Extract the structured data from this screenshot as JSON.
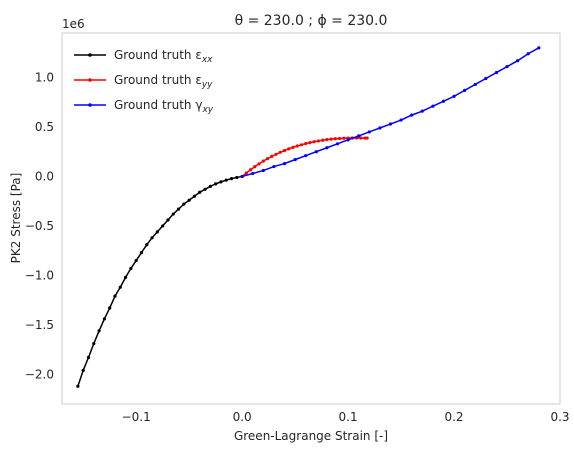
{
  "chart_data": {
    "type": "line",
    "title": "θ = 230.0 ; ϕ = 230.0",
    "xlabel": "Green-Lagrange Strain [-]",
    "ylabel": "PK2 Stress [Pa]",
    "y_offset_label": "1e6",
    "xlim": [
      -0.17,
      0.3
    ],
    "ylim": [
      -2.3,
      1.45
    ],
    "x_ticks": [
      -0.1,
      0.0,
      0.1,
      0.2,
      0.3
    ],
    "x_tick_labels": [
      "−0.1",
      "0.0",
      "0.1",
      "0.2",
      "0.3"
    ],
    "y_ticks": [
      -2.0,
      -1.5,
      -1.0,
      -0.5,
      0.0,
      0.5,
      1.0
    ],
    "y_tick_labels": [
      "−2.0",
      "−1.5",
      "−1.0",
      "−0.5",
      "0.0",
      "0.5",
      "1.0"
    ],
    "grid": false,
    "legend_position": "top-left",
    "series": [
      {
        "name": "Ground truth εxx",
        "legend_base": "Ground truth ε",
        "legend_sub": "xx",
        "color": "#000000",
        "x": [
          -0.155,
          -0.15,
          -0.145,
          -0.14,
          -0.135,
          -0.13,
          -0.125,
          -0.12,
          -0.115,
          -0.11,
          -0.105,
          -0.1,
          -0.095,
          -0.09,
          -0.085,
          -0.08,
          -0.075,
          -0.07,
          -0.065,
          -0.06,
          -0.055,
          -0.05,
          -0.045,
          -0.04,
          -0.035,
          -0.03,
          -0.025,
          -0.02,
          -0.015,
          -0.01,
          -0.005,
          0.0
        ],
        "y": [
          -2.12,
          -1.96,
          -1.83,
          -1.69,
          -1.56,
          -1.44,
          -1.33,
          -1.21,
          -1.12,
          -1.02,
          -0.93,
          -0.85,
          -0.77,
          -0.69,
          -0.62,
          -0.56,
          -0.5,
          -0.44,
          -0.38,
          -0.33,
          -0.28,
          -0.24,
          -0.2,
          -0.16,
          -0.13,
          -0.1,
          -0.075,
          -0.055,
          -0.037,
          -0.022,
          -0.01,
          0.0
        ]
      },
      {
        "name": "Ground truth εyy",
        "legend_base": "Ground truth ε",
        "legend_sub": "yy",
        "color": "#ff0000",
        "x": [
          0.0,
          0.004,
          0.008,
          0.012,
          0.016,
          0.02,
          0.024,
          0.028,
          0.032,
          0.036,
          0.04,
          0.044,
          0.048,
          0.052,
          0.056,
          0.06,
          0.064,
          0.068,
          0.072,
          0.076,
          0.08,
          0.084,
          0.088,
          0.092,
          0.096,
          0.1,
          0.104,
          0.108,
          0.112,
          0.116,
          0.118
        ],
        "y": [
          0.0,
          0.035,
          0.068,
          0.099,
          0.128,
          0.155,
          0.18,
          0.203,
          0.224,
          0.244,
          0.262,
          0.279,
          0.294,
          0.308,
          0.32,
          0.332,
          0.342,
          0.351,
          0.359,
          0.366,
          0.372,
          0.377,
          0.381,
          0.384,
          0.386,
          0.388,
          0.389,
          0.389,
          0.389,
          0.388,
          0.388
        ]
      },
      {
        "name": "Ground truth γxy",
        "legend_base": "Ground truth γ",
        "legend_sub": "xy",
        "color": "#0000ff",
        "x": [
          0.0,
          0.01,
          0.02,
          0.03,
          0.04,
          0.05,
          0.06,
          0.07,
          0.08,
          0.09,
          0.1,
          0.11,
          0.12,
          0.13,
          0.14,
          0.15,
          0.16,
          0.17,
          0.18,
          0.19,
          0.2,
          0.21,
          0.22,
          0.23,
          0.24,
          0.25,
          0.26,
          0.27,
          0.28
        ],
        "y": [
          0.0,
          0.03,
          0.06,
          0.1,
          0.13,
          0.17,
          0.21,
          0.25,
          0.29,
          0.33,
          0.37,
          0.41,
          0.45,
          0.49,
          0.53,
          0.57,
          0.62,
          0.66,
          0.71,
          0.76,
          0.81,
          0.87,
          0.93,
          0.99,
          1.05,
          1.11,
          1.17,
          1.24,
          1.3
        ]
      }
    ]
  }
}
